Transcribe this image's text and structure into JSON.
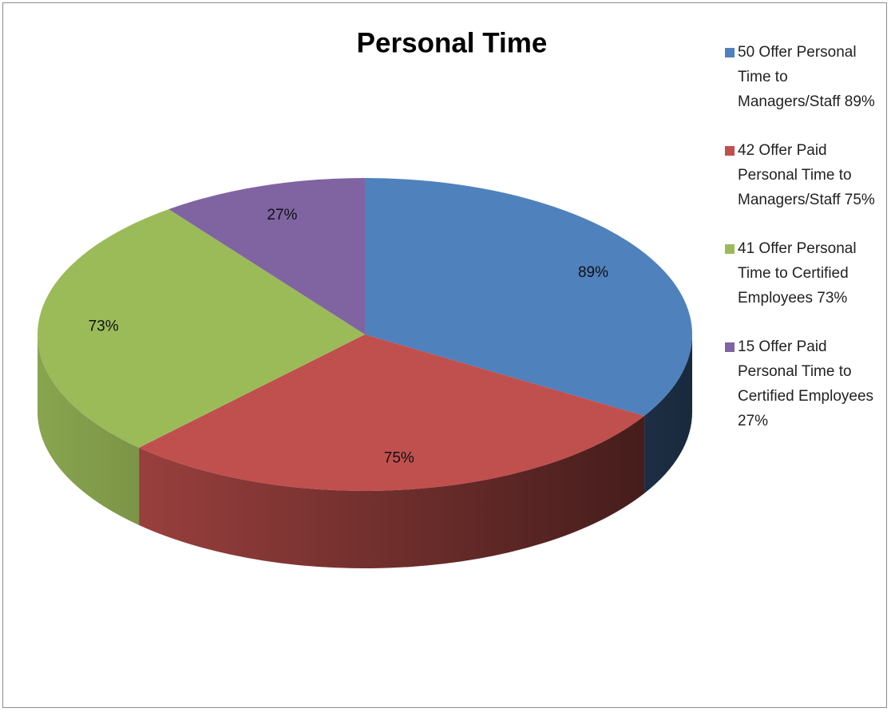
{
  "chart_data": {
    "type": "pie",
    "title": "Personal Time",
    "categories": [
      "50 Offer Personal Time to Managers/Staff 89%",
      "42 Offer Paid Personal Time to Managers/Staff 75%",
      "41 Offer Personal Time to Certified Employees 73%",
      "15 Offer Paid Personal Time to Certified Employees 27%"
    ],
    "values": [
      89,
      75,
      73,
      27
    ],
    "value_labels": [
      "89%",
      "75%",
      "73%",
      "27%"
    ],
    "colors": [
      "#4f81bd",
      "#c0504d",
      "#9bbb59",
      "#8064a2"
    ],
    "legend": "right"
  }
}
